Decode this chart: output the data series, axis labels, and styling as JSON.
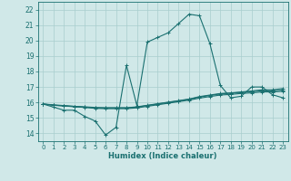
{
  "title": "",
  "xlabel": "Humidex (Indice chaleur)",
  "ylabel": "",
  "xlim": [
    -0.5,
    23.5
  ],
  "ylim": [
    13.5,
    22.5
  ],
  "xticks": [
    0,
    1,
    2,
    3,
    4,
    5,
    6,
    7,
    8,
    9,
    10,
    11,
    12,
    13,
    14,
    15,
    16,
    17,
    18,
    19,
    20,
    21,
    22,
    23
  ],
  "yticks": [
    14,
    15,
    16,
    17,
    18,
    19,
    20,
    21,
    22
  ],
  "bg_color": "#d0e8e8",
  "grid_color": "#a8cece",
  "line_color": "#1a7070",
  "lines": [
    {
      "x": [
        0,
        1,
        2,
        3,
        4,
        5,
        6,
        7,
        8,
        9,
        10,
        11,
        12,
        13,
        14,
        15,
        16,
        17,
        18,
        19,
        20,
        21,
        22,
        23
      ],
      "y": [
        15.9,
        15.7,
        15.5,
        15.5,
        15.1,
        14.8,
        13.9,
        14.4,
        18.4,
        15.8,
        19.9,
        20.2,
        20.5,
        21.1,
        21.7,
        21.6,
        19.8,
        17.1,
        16.3,
        16.4,
        17.0,
        17.0,
        16.5,
        16.3
      ]
    },
    {
      "x": [
        0,
        1,
        2,
        3,
        4,
        5,
        6,
        7,
        8,
        9,
        10,
        11,
        12,
        13,
        14,
        15,
        16,
        17,
        18,
        19,
        20,
        21,
        22,
        23
      ],
      "y": [
        15.9,
        15.85,
        15.8,
        15.75,
        15.7,
        15.65,
        15.65,
        15.65,
        15.65,
        15.7,
        15.8,
        15.9,
        16.0,
        16.1,
        16.2,
        16.35,
        16.45,
        16.55,
        16.6,
        16.65,
        16.7,
        16.75,
        16.75,
        16.8
      ]
    },
    {
      "x": [
        0,
        1,
        2,
        3,
        4,
        5,
        6,
        7,
        8,
        9,
        10,
        11,
        12,
        13,
        14,
        15,
        16,
        17,
        18,
        19,
        20,
        21,
        22,
        23
      ],
      "y": [
        15.9,
        15.82,
        15.78,
        15.72,
        15.68,
        15.62,
        15.6,
        15.6,
        15.6,
        15.65,
        15.75,
        15.85,
        15.95,
        16.05,
        16.15,
        16.28,
        16.38,
        16.48,
        16.52,
        16.58,
        16.62,
        16.68,
        16.68,
        16.72
      ]
    },
    {
      "x": [
        0,
        1,
        2,
        3,
        4,
        5,
        6,
        7,
        8,
        9,
        10,
        11,
        12,
        13,
        14,
        15,
        16,
        17,
        18,
        19,
        20,
        21,
        22,
        23
      ],
      "y": [
        15.9,
        15.82,
        15.78,
        15.75,
        15.72,
        15.68,
        15.66,
        15.66,
        15.66,
        15.72,
        15.82,
        15.92,
        16.02,
        16.12,
        16.22,
        16.38,
        16.48,
        16.58,
        16.62,
        16.68,
        16.74,
        16.82,
        16.82,
        16.9
      ]
    }
  ]
}
